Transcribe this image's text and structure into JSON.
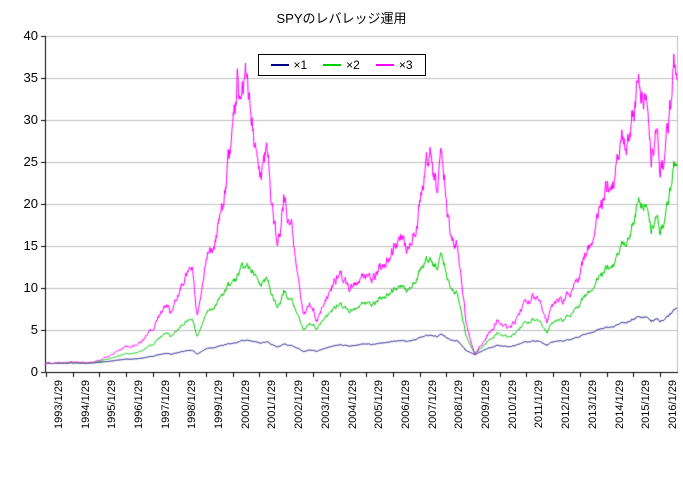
{
  "title": "SPYのレバレッジ運用",
  "chart_data": {
    "type": "line",
    "title": "SPYのレバレッジ運用",
    "xlabel": "",
    "ylabel": "",
    "ylim": [
      0,
      40
    ],
    "y_tick_interval": 5,
    "y_tick_labels": [
      "0",
      "5",
      "10",
      "15",
      "20",
      "25",
      "30",
      "35",
      "40"
    ],
    "x_domain": [
      1993.05,
      2016.72
    ],
    "x_tick_start": 1993.08,
    "x_tick_step": 1,
    "x_tick_labels": [
      "1993/1/29",
      "1994/1/29",
      "1995/1/29",
      "1996/1/29",
      "1997/1/29",
      "1998/1/29",
      "1999/1/29",
      "2000/1/29",
      "2001/1/29",
      "2002/1/29",
      "2003/1/29",
      "2004/1/29",
      "2005/1/29",
      "2006/1/29",
      "2007/1/29",
      "2008/1/29",
      "2009/1/29",
      "2010/1/29",
      "2011/1/29",
      "2012/1/29",
      "2013/1/29",
      "2014/1/29",
      "2015/1/29",
      "2016/1/29"
    ],
    "grid": true,
    "grid_color": "#c0c0c0",
    "axis_color": "#000000",
    "background_color": "#ffffff",
    "legend_position": "top-center",
    "legend": [
      "×1",
      "×2",
      "×3"
    ],
    "noise_base": 0.013,
    "series": [
      {
        "name": "×1",
        "color": "#000080",
        "noise_mult": 1.0,
        "anchors": [
          [
            1993.08,
            1.0
          ],
          [
            1993.6,
            1.04
          ],
          [
            1994.0,
            1.08
          ],
          [
            1994.6,
            1.04
          ],
          [
            1995.0,
            1.12
          ],
          [
            1995.5,
            1.28
          ],
          [
            1996.0,
            1.5
          ],
          [
            1996.6,
            1.6
          ],
          [
            1997.0,
            1.85
          ],
          [
            1997.6,
            2.25
          ],
          [
            1997.8,
            2.1
          ],
          [
            1998.3,
            2.55
          ],
          [
            1998.55,
            2.6
          ],
          [
            1998.75,
            2.15
          ],
          [
            1999.1,
            2.85
          ],
          [
            1999.5,
            3.0
          ],
          [
            1999.8,
            3.2
          ],
          [
            2000.2,
            3.5
          ],
          [
            2000.6,
            3.8
          ],
          [
            2000.9,
            3.55
          ],
          [
            2001.1,
            3.35
          ],
          [
            2001.4,
            3.6
          ],
          [
            2001.75,
            3.0
          ],
          [
            2002.0,
            3.3
          ],
          [
            2002.3,
            3.15
          ],
          [
            2002.75,
            2.45
          ],
          [
            2003.05,
            2.65
          ],
          [
            2003.25,
            2.5
          ],
          [
            2003.6,
            2.9
          ],
          [
            2004.0,
            3.2
          ],
          [
            2004.6,
            3.1
          ],
          [
            2005.0,
            3.4
          ],
          [
            2005.3,
            3.25
          ],
          [
            2006.0,
            3.65
          ],
          [
            2006.4,
            3.75
          ],
          [
            2006.6,
            3.6
          ],
          [
            2007.0,
            4.0
          ],
          [
            2007.5,
            4.4
          ],
          [
            2007.7,
            4.2
          ],
          [
            2007.9,
            4.45
          ],
          [
            2008.2,
            3.9
          ],
          [
            2008.5,
            3.8
          ],
          [
            2008.8,
            2.6
          ],
          [
            2009.15,
            2.05
          ],
          [
            2009.5,
            2.7
          ],
          [
            2010.0,
            3.2
          ],
          [
            2010.5,
            2.95
          ],
          [
            2011.0,
            3.55
          ],
          [
            2011.55,
            3.75
          ],
          [
            2011.85,
            3.15
          ],
          [
            2012.0,
            3.5
          ],
          [
            2012.5,
            3.7
          ],
          [
            2013.0,
            4.2
          ],
          [
            2013.5,
            4.7
          ],
          [
            2014.0,
            5.2
          ],
          [
            2014.5,
            5.6
          ],
          [
            2015.0,
            6.2
          ],
          [
            2015.3,
            6.6
          ],
          [
            2015.55,
            6.5
          ],
          [
            2015.75,
            6.0
          ],
          [
            2015.95,
            6.4
          ],
          [
            2016.1,
            6.0
          ],
          [
            2016.35,
            6.6
          ],
          [
            2016.6,
            7.3
          ],
          [
            2016.72,
            7.8
          ]
        ]
      },
      {
        "name": "×2",
        "color": "#00cc00",
        "noise_mult": 2.1,
        "anchors": [
          [
            1993.08,
            1.0
          ],
          [
            1993.6,
            1.07
          ],
          [
            1994.0,
            1.14
          ],
          [
            1994.6,
            1.06
          ],
          [
            1995.0,
            1.22
          ],
          [
            1995.5,
            1.6
          ],
          [
            1996.0,
            2.1
          ],
          [
            1996.6,
            2.4
          ],
          [
            1997.0,
            3.2
          ],
          [
            1997.6,
            4.8
          ],
          [
            1997.8,
            4.2
          ],
          [
            1998.3,
            6.1
          ],
          [
            1998.55,
            6.4
          ],
          [
            1998.75,
            4.3
          ],
          [
            1999.1,
            7.4
          ],
          [
            1999.5,
            8.2
          ],
          [
            1999.8,
            9.4
          ],
          [
            2000.2,
            11.3
          ],
          [
            2000.6,
            12.8
          ],
          [
            2000.9,
            11.2
          ],
          [
            2001.1,
            9.8
          ],
          [
            2001.4,
            11.2
          ],
          [
            2001.75,
            7.8
          ],
          [
            2002.0,
            9.4
          ],
          [
            2002.3,
            8.6
          ],
          [
            2002.75,
            5.1
          ],
          [
            2003.05,
            5.9
          ],
          [
            2003.25,
            5.3
          ],
          [
            2003.6,
            6.8
          ],
          [
            2004.0,
            7.9
          ],
          [
            2004.6,
            7.2
          ],
          [
            2005.0,
            8.5
          ],
          [
            2005.3,
            7.9
          ],
          [
            2006.0,
            9.7
          ],
          [
            2006.4,
            10.3
          ],
          [
            2006.6,
            9.4
          ],
          [
            2007.0,
            11.5
          ],
          [
            2007.5,
            13.5
          ],
          [
            2007.7,
            12.2
          ],
          [
            2007.9,
            13.8
          ],
          [
            2008.2,
            10.5
          ],
          [
            2008.5,
            9.8
          ],
          [
            2008.8,
            4.6
          ],
          [
            2009.15,
            2.15
          ],
          [
            2009.5,
            3.4
          ],
          [
            2010.0,
            4.7
          ],
          [
            2010.5,
            4.0
          ],
          [
            2011.0,
            5.8
          ],
          [
            2011.55,
            6.4
          ],
          [
            2011.85,
            4.6
          ],
          [
            2012.0,
            5.6
          ],
          [
            2012.5,
            6.2
          ],
          [
            2013.0,
            8.0
          ],
          [
            2013.5,
            9.8
          ],
          [
            2014.0,
            11.8
          ],
          [
            2014.5,
            13.8
          ],
          [
            2015.0,
            17.0
          ],
          [
            2015.3,
            20.5
          ],
          [
            2015.55,
            19.5
          ],
          [
            2015.75,
            16.5
          ],
          [
            2015.95,
            19.0
          ],
          [
            2016.1,
            16.5
          ],
          [
            2016.35,
            20.0
          ],
          [
            2016.6,
            24.0
          ],
          [
            2016.72,
            25.8
          ]
        ]
      },
      {
        "name": "×3",
        "color": "#ff00ff",
        "noise_mult": 3.1,
        "anchors": [
          [
            1993.08,
            1.0
          ],
          [
            1993.6,
            1.1
          ],
          [
            1994.0,
            1.22
          ],
          [
            1994.6,
            1.08
          ],
          [
            1995.0,
            1.32
          ],
          [
            1995.5,
            1.95
          ],
          [
            1996.0,
            2.9
          ],
          [
            1996.6,
            3.4
          ],
          [
            1997.0,
            5.0
          ],
          [
            1997.6,
            8.3
          ],
          [
            1997.8,
            7.0
          ],
          [
            1998.3,
            11.8
          ],
          [
            1998.55,
            12.8
          ],
          [
            1998.75,
            6.9
          ],
          [
            1999.1,
            14.5
          ],
          [
            1999.5,
            16.5
          ],
          [
            1999.8,
            20.5
          ],
          [
            2000.1,
            30.0
          ],
          [
            2000.25,
            35.5
          ],
          [
            2000.4,
            29.5
          ],
          [
            2000.55,
            37.0
          ],
          [
            2000.75,
            30.5
          ],
          [
            2000.9,
            25.5
          ],
          [
            2001.1,
            21.5
          ],
          [
            2001.4,
            27.0
          ],
          [
            2001.75,
            15.5
          ],
          [
            2002.0,
            20.0
          ],
          [
            2002.3,
            17.5
          ],
          [
            2002.75,
            7.0
          ],
          [
            2003.05,
            8.2
          ],
          [
            2003.25,
            6.3
          ],
          [
            2003.6,
            9.0
          ],
          [
            2004.0,
            11.3
          ],
          [
            2004.6,
            9.9
          ],
          [
            2005.0,
            12.0
          ],
          [
            2005.3,
            10.8
          ],
          [
            2006.0,
            14.3
          ],
          [
            2006.4,
            16.3
          ],
          [
            2006.6,
            13.9
          ],
          [
            2007.0,
            18.3
          ],
          [
            2007.5,
            26.5
          ],
          [
            2007.7,
            21.5
          ],
          [
            2007.9,
            25.5
          ],
          [
            2008.2,
            17.5
          ],
          [
            2008.5,
            16.0
          ],
          [
            2008.8,
            6.5
          ],
          [
            2009.15,
            2.2
          ],
          [
            2009.5,
            4.0
          ],
          [
            2010.0,
            6.2
          ],
          [
            2010.5,
            5.0
          ],
          [
            2011.0,
            8.2
          ],
          [
            2011.55,
            9.2
          ],
          [
            2011.85,
            5.8
          ],
          [
            2012.0,
            7.5
          ],
          [
            2012.5,
            8.5
          ],
          [
            2013.0,
            11.5
          ],
          [
            2013.5,
            15.5
          ],
          [
            2014.0,
            20.5
          ],
          [
            2014.5,
            25.0
          ],
          [
            2015.0,
            30.0
          ],
          [
            2015.3,
            34.5
          ],
          [
            2015.55,
            32.0
          ],
          [
            2015.75,
            24.5
          ],
          [
            2015.95,
            30.0
          ],
          [
            2016.1,
            23.5
          ],
          [
            2016.35,
            29.0
          ],
          [
            2016.6,
            35.5
          ],
          [
            2016.72,
            37.5
          ]
        ]
      }
    ]
  }
}
